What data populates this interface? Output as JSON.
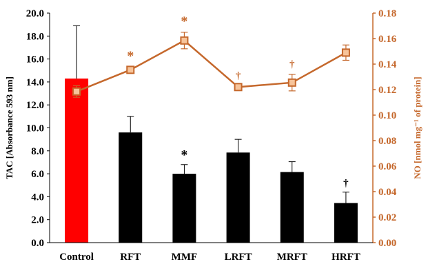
{
  "chart_data": {
    "type": "bar",
    "categories": [
      "Control",
      "RFT",
      "MMF",
      "LRFT",
      "MRFT",
      "HRFT"
    ],
    "bar_series": {
      "axis": "left",
      "ylabel": "TAC [Absorbance 593 nm]",
      "ylim": [
        0,
        20
      ],
      "yticks": [
        "0.0",
        "2.0",
        "4.0",
        "6.0",
        "8.0",
        "10.0",
        "12.0",
        "14.0",
        "16.0",
        "18.0",
        "20.0"
      ],
      "values": [
        14.3,
        9.6,
        6.0,
        7.85,
        6.15,
        3.45
      ],
      "errors": [
        4.6,
        1.4,
        0.8,
        1.15,
        0.9,
        0.95
      ],
      "colors": [
        "#ff0000",
        "#000000",
        "#000000",
        "#000000",
        "#000000",
        "#000000"
      ],
      "markers": [
        "",
        "",
        "*",
        "",
        "",
        "†"
      ]
    },
    "line_series": {
      "axis": "right",
      "ylabel": "NO [nmol mg⁻¹ of protein]",
      "ylim": [
        0,
        0.18
      ],
      "yticks": [
        "0.00",
        "0.02",
        "0.04",
        "0.06",
        "0.08",
        "0.10",
        "0.12",
        "0.14",
        "0.16",
        "0.18"
      ],
      "values": [
        0.1185,
        0.1355,
        0.1585,
        0.122,
        0.1255,
        0.149
      ],
      "errors": [
        0.0045,
        0.002,
        0.0065,
        0.001,
        0.0065,
        0.006
      ],
      "color": "#c5682c",
      "markers": [
        "",
        "*",
        "*",
        "†",
        "†",
        ""
      ]
    }
  }
}
